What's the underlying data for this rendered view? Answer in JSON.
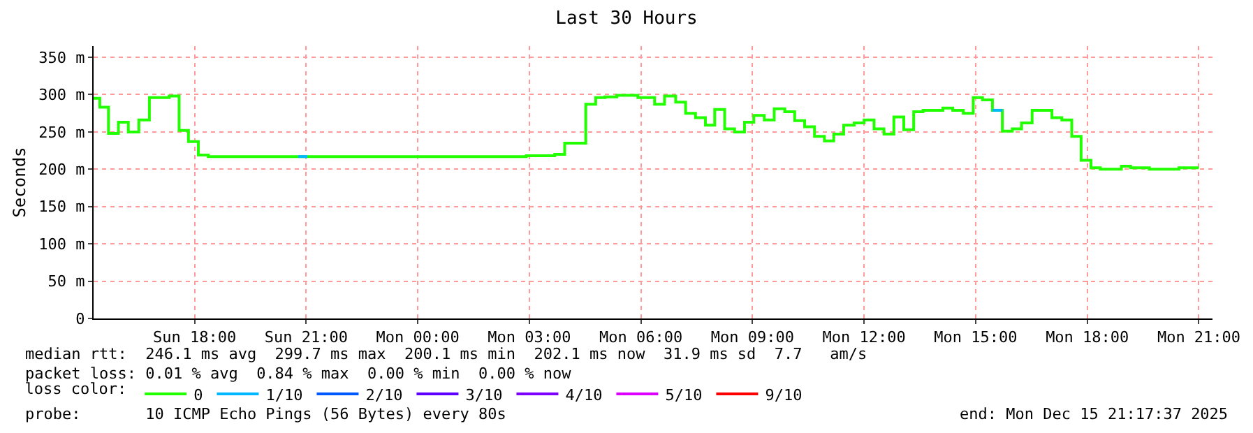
{
  "chart_data": {
    "type": "step",
    "title": "Last 30 Hours",
    "ylabel": "Seconds",
    "legend_title": "loss color:",
    "x": [
      "2025-12-14T15:17",
      "2025-12-14T15:27",
      "2025-12-14T15:41",
      "2025-12-14T15:57",
      "2025-12-14T16:13",
      "2025-12-14T16:30",
      "2025-12-14T16:47",
      "2025-12-14T17:19",
      "2025-12-14T17:35",
      "2025-12-14T17:50",
      "2025-12-14T18:06",
      "2025-12-14T18:22",
      "2025-12-15T02:55",
      "2025-12-15T03:41",
      "2025-12-15T03:57",
      "2025-12-15T04:31",
      "2025-12-15T04:47",
      "2025-12-15T05:02",
      "2025-12-15T05:21",
      "2025-12-15T05:55",
      "2025-12-15T06:22",
      "2025-12-15T06:38",
      "2025-12-15T06:56",
      "2025-12-15T07:12",
      "2025-12-15T07:28",
      "2025-12-15T07:44",
      "2025-12-15T07:59",
      "2025-12-15T08:15",
      "2025-12-15T08:31",
      "2025-12-15T08:47",
      "2025-12-15T09:02",
      "2025-12-15T09:19",
      "2025-12-15T09:35",
      "2025-12-15T09:52",
      "2025-12-15T10:08",
      "2025-12-15T10:24",
      "2025-12-15T10:40",
      "2025-12-15T10:56",
      "2025-12-15T11:11",
      "2025-12-15T11:27",
      "2025-12-15T11:44",
      "2025-12-15T12:00",
      "2025-12-15T12:16",
      "2025-12-15T12:32",
      "2025-12-15T12:48",
      "2025-12-15T13:04",
      "2025-12-15T13:20",
      "2025-12-15T13:35",
      "2025-12-15T14:07",
      "2025-12-15T14:23",
      "2025-12-15T14:40",
      "2025-12-15T14:56",
      "2025-12-15T15:11",
      "2025-12-15T15:27",
      "2025-12-15T15:43",
      "2025-12-15T15:59",
      "2025-12-15T16:14",
      "2025-12-15T16:31",
      "2025-12-15T17:03",
      "2025-12-15T17:19",
      "2025-12-15T17:35",
      "2025-12-15T17:50",
      "2025-12-15T18:06",
      "2025-12-15T18:21",
      "2025-12-15T18:55",
      "2025-12-15T19:10",
      "2025-12-15T19:40",
      "2025-12-15T20:28",
      "2025-12-15T21:00"
    ],
    "series": [
      {
        "name": "0",
        "color": "#22ff00",
        "values": [
          295,
          283,
          248,
          263,
          250,
          266,
          296,
          298,
          252,
          237,
          219,
          217,
          218,
          220,
          235,
          287,
          296,
          297,
          299,
          296,
          287,
          298,
          290,
          275,
          269,
          259,
          280,
          254,
          250,
          263,
          272,
          266,
          281,
          277,
          265,
          257,
          244,
          238,
          247,
          259,
          262,
          266,
          254,
          247,
          270,
          253,
          277,
          279,
          282,
          279,
          275,
          296,
          293,
          279,
          251,
          254,
          262,
          279,
          269,
          266,
          244,
          212,
          202,
          200,
          204,
          202,
          200,
          202,
          202
        ]
      },
      {
        "name": "1/10",
        "color": "#00b8ff",
        "x": [
          "2025-12-14T20:47",
          "2025-12-14T21:02",
          null,
          "2025-12-15T15:27",
          "2025-12-15T15:43"
        ],
        "values": [
          217,
          217,
          null,
          279,
          279
        ]
      },
      {
        "name": "2/10",
        "color": "#0059ff",
        "values": [
          null,
          null,
          null,
          null,
          null,
          null,
          null,
          null,
          null,
          null,
          null,
          null,
          null,
          null,
          null,
          null,
          null,
          null,
          null,
          null,
          null,
          null,
          null,
          null,
          null,
          null,
          null,
          null,
          null,
          null,
          null,
          null,
          null,
          null,
          null,
          null,
          null,
          null,
          null,
          null,
          null,
          null,
          null,
          null,
          null,
          null,
          null,
          null,
          null,
          null,
          null,
          null,
          null,
          null,
          null,
          null,
          null,
          null,
          null,
          null,
          null,
          null,
          null,
          null,
          null,
          null,
          null,
          null,
          null
        ]
      },
      {
        "name": "3/10",
        "color": "#5e00ff",
        "values": [
          null,
          null,
          null,
          null,
          null,
          null,
          null,
          null,
          null,
          null,
          null,
          null,
          null,
          null,
          null,
          null,
          null,
          null,
          null,
          null,
          null,
          null,
          null,
          null,
          null,
          null,
          null,
          null,
          null,
          null,
          null,
          null,
          null,
          null,
          null,
          null,
          null,
          null,
          null,
          null,
          null,
          null,
          null,
          null,
          null,
          null,
          null,
          null,
          null,
          null,
          null,
          null,
          null,
          null,
          null,
          null,
          null,
          null,
          null,
          null,
          null,
          null,
          null,
          null,
          null,
          null,
          null,
          null,
          null
        ]
      },
      {
        "name": "4/10",
        "color": "#7e00ff",
        "values": [
          null,
          null,
          null,
          null,
          null,
          null,
          null,
          null,
          null,
          null,
          null,
          null,
          null,
          null,
          null,
          null,
          null,
          null,
          null,
          null,
          null,
          null,
          null,
          null,
          null,
          null,
          null,
          null,
          null,
          null,
          null,
          null,
          null,
          null,
          null,
          null,
          null,
          null,
          null,
          null,
          null,
          null,
          null,
          null,
          null,
          null,
          null,
          null,
          null,
          null,
          null,
          null,
          null,
          null,
          null,
          null,
          null,
          null,
          null,
          null,
          null,
          null,
          null,
          null,
          null,
          null,
          null,
          null,
          null
        ]
      },
      {
        "name": "5/10",
        "color": "#dd00ff",
        "values": [
          null,
          null,
          null,
          null,
          null,
          null,
          null,
          null,
          null,
          null,
          null,
          null,
          null,
          null,
          null,
          null,
          null,
          null,
          null,
          null,
          null,
          null,
          null,
          null,
          null,
          null,
          null,
          null,
          null,
          null,
          null,
          null,
          null,
          null,
          null,
          null,
          null,
          null,
          null,
          null,
          null,
          null,
          null,
          null,
          null,
          null,
          null,
          null,
          null,
          null,
          null,
          null,
          null,
          null,
          null,
          null,
          null,
          null,
          null,
          null,
          null,
          null,
          null,
          null,
          null,
          null,
          null,
          null,
          null
        ]
      },
      {
        "name": "9/10",
        "color": "#ff0000",
        "values": [
          null,
          null,
          null,
          null,
          null,
          null,
          null,
          null,
          null,
          null,
          null,
          null,
          null,
          null,
          null,
          null,
          null,
          null,
          null,
          null,
          null,
          null,
          null,
          null,
          null,
          null,
          null,
          null,
          null,
          null,
          null,
          null,
          null,
          null,
          null,
          null,
          null,
          null,
          null,
          null,
          null,
          null,
          null,
          null,
          null,
          null,
          null,
          null,
          null,
          null,
          null,
          null,
          null,
          null,
          null,
          null,
          null,
          null,
          null,
          null,
          null,
          null,
          null,
          null,
          null,
          null,
          null,
          null,
          null
        ]
      }
    ],
    "xlim": [
      "2025-12-14T15:17",
      "2025-12-15T21:22"
    ],
    "xticks": [
      {
        "value": "2025-12-14T18:00",
        "label": "Sun 18:00"
      },
      {
        "value": "2025-12-14T21:00",
        "label": "Sun 21:00"
      },
      {
        "value": "2025-12-15T00:00",
        "label": "Mon 00:00"
      },
      {
        "value": "2025-12-15T03:00",
        "label": "Mon 03:00"
      },
      {
        "value": "2025-12-15T06:00",
        "label": "Mon 06:00"
      },
      {
        "value": "2025-12-15T09:00",
        "label": "Mon 09:00"
      },
      {
        "value": "2025-12-15T12:00",
        "label": "Mon 12:00"
      },
      {
        "value": "2025-12-15T15:00",
        "label": "Mon 15:00"
      },
      {
        "value": "2025-12-15T18:00",
        "label": "Mon 18:00"
      },
      {
        "value": "2025-12-15T21:00",
        "label": "Mon 21:00"
      }
    ],
    "ylim": [
      0,
      365
    ],
    "yticks": [
      0,
      {
        "value": 50,
        "label": "50 m"
      },
      {
        "value": 100,
        "label": "100 m"
      },
      {
        "value": 150,
        "label": "150 m"
      },
      {
        "value": 200,
        "label": "200 m"
      },
      {
        "value": 250,
        "label": "250 m"
      },
      {
        "value": 300,
        "label": "300 m"
      },
      {
        "value": 350,
        "label": "350 m"
      }
    ],
    "grid": true,
    "legend": "bottom",
    "marker": "none",
    "line_style": "solid",
    "annotations": [
      "median rtt:  246.1 ms avg  299.7 ms max  200.1 ms min  202.1 ms now  31.9 ms sd  7.7   am/s",
      "packet loss: 0.01 % avg  0.84 % max  0.00 % min  0.00 % now",
      "probe:       10 ICMP Echo Pings (56 Bytes) every 80s",
      "end: Mon Dec 15 21:17:37 2025"
    ]
  }
}
